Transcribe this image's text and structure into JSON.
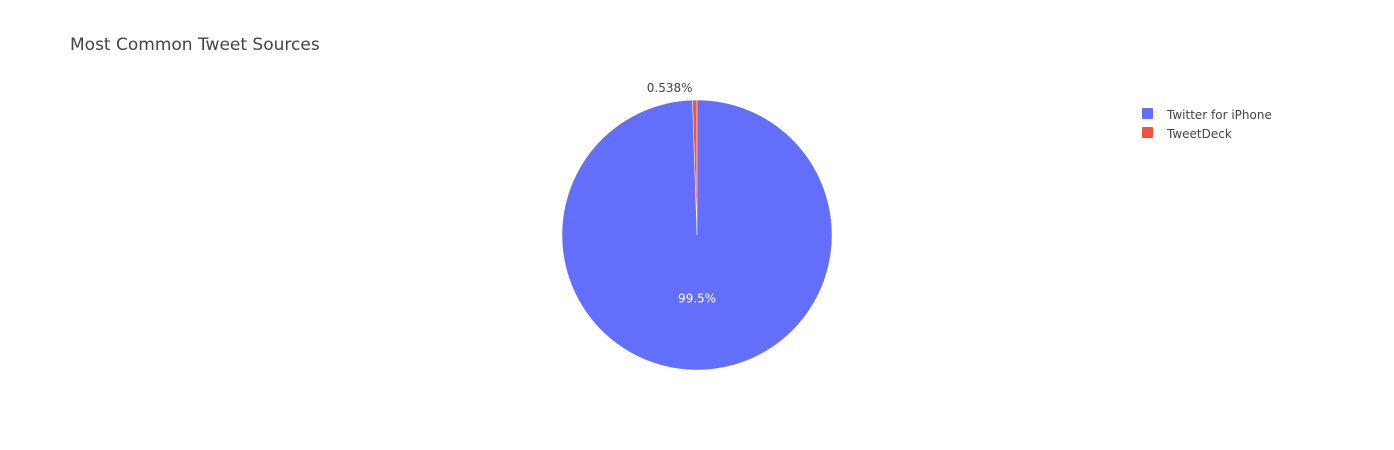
{
  "chart_data": {
    "type": "pie",
    "title": "Most Common Tweet Sources",
    "labels": [
      "Twitter for iPhone",
      "TweetDeck"
    ],
    "percent_labels": [
      "99.5%",
      "0.538%"
    ],
    "values": [
      99.462,
      0.538
    ],
    "colors": [
      "#636efa",
      "#ef553b"
    ],
    "legend_position": "top-right"
  }
}
